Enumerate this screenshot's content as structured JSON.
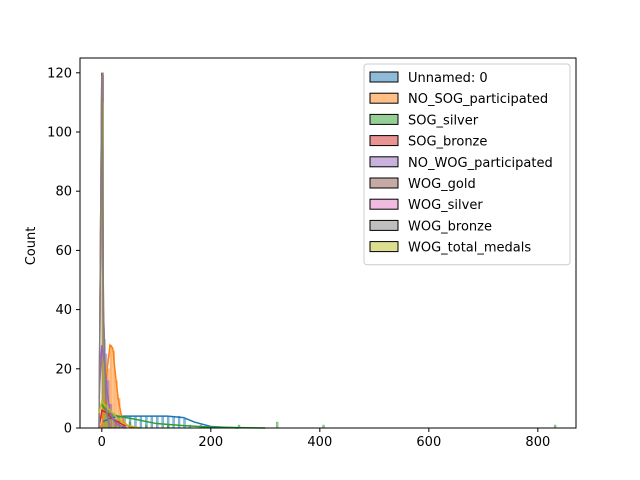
{
  "chart_data": {
    "type": "histogram",
    "title": "",
    "xlabel": "",
    "ylabel": "Count",
    "xlim": [
      -40,
      870
    ],
    "ylim": [
      0,
      125
    ],
    "xticks": [
      0,
      200,
      400,
      600,
      800
    ],
    "yticks": [
      0,
      20,
      40,
      60,
      80,
      100,
      120
    ],
    "legend_position": "top-right",
    "grid": false,
    "series": [
      {
        "name": "Unnamed: 0",
        "color": "#1f77b4",
        "bars": [
          [
            0,
            3
          ],
          [
            10,
            4
          ],
          [
            20,
            4
          ],
          [
            30,
            4
          ],
          [
            40,
            4
          ],
          [
            50,
            4
          ],
          [
            60,
            4
          ],
          [
            70,
            4
          ],
          [
            80,
            4
          ],
          [
            90,
            4
          ],
          [
            100,
            4
          ],
          [
            110,
            4
          ],
          [
            120,
            4
          ],
          [
            130,
            4
          ],
          [
            140,
            4
          ],
          [
            150,
            3
          ],
          [
            160,
            1
          ]
        ],
        "kde": [
          [
            0,
            2
          ],
          [
            20,
            3.6
          ],
          [
            40,
            4
          ],
          [
            80,
            4
          ],
          [
            120,
            4
          ],
          [
            150,
            3.5
          ],
          [
            170,
            2
          ],
          [
            200,
            0.5
          ],
          [
            250,
            0
          ]
        ]
      },
      {
        "name": "NO_SOG_participated",
        "color": "#ff7f0e",
        "bars": [
          [
            5,
            12
          ],
          [
            10,
            20
          ],
          [
            15,
            28
          ],
          [
            20,
            26
          ],
          [
            25,
            16
          ],
          [
            30,
            10
          ],
          [
            35,
            4
          ],
          [
            40,
            2
          ]
        ],
        "kde": [
          [
            -5,
            0
          ],
          [
            0,
            1
          ],
          [
            5,
            8
          ],
          [
            10,
            20
          ],
          [
            15,
            28
          ],
          [
            20,
            27
          ],
          [
            25,
            18
          ],
          [
            30,
            10
          ],
          [
            35,
            5
          ],
          [
            40,
            2
          ],
          [
            50,
            0.5
          ],
          [
            60,
            0
          ]
        ]
      },
      {
        "name": "SOG_silver",
        "color": "#2ca02c",
        "bars": [
          [
            0,
            67
          ],
          [
            5,
            10
          ],
          [
            10,
            6
          ],
          [
            20,
            4
          ],
          [
            30,
            3
          ],
          [
            50,
            2
          ],
          [
            80,
            1
          ],
          [
            120,
            1
          ],
          [
            180,
            1
          ],
          [
            250,
            1
          ],
          [
            320,
            2
          ],
          [
            405,
            1
          ],
          [
            830,
            1
          ]
        ],
        "kde": [
          [
            0,
            8
          ],
          [
            10,
            5
          ],
          [
            30,
            4
          ],
          [
            60,
            3
          ],
          [
            100,
            1.5
          ],
          [
            150,
            0.8
          ],
          [
            200,
            0.3
          ],
          [
            300,
            0
          ]
        ]
      },
      {
        "name": "SOG_bronze",
        "color": "#d62728",
        "bars": [
          [
            0,
            60
          ],
          [
            5,
            12
          ],
          [
            10,
            6
          ],
          [
            15,
            4
          ],
          [
            25,
            2
          ],
          [
            40,
            1
          ]
        ],
        "kde": [
          [
            -5,
            0
          ],
          [
            0,
            6
          ],
          [
            10,
            5
          ],
          [
            20,
            3
          ],
          [
            40,
            1
          ],
          [
            70,
            0
          ]
        ]
      },
      {
        "name": "NO_WOG_participated",
        "color": "#9467bd",
        "bars": [
          [
            0,
            35
          ],
          [
            3,
            30
          ],
          [
            6,
            25
          ],
          [
            10,
            16
          ],
          [
            15,
            8
          ],
          [
            20,
            5
          ],
          [
            25,
            3
          ],
          [
            30,
            2
          ]
        ],
        "kde": [
          [
            -5,
            10
          ],
          [
            0,
            28
          ],
          [
            5,
            22
          ],
          [
            10,
            12
          ],
          [
            15,
            6
          ],
          [
            20,
            3
          ],
          [
            30,
            1
          ],
          [
            45,
            0
          ]
        ]
      },
      {
        "name": "WOG_gold",
        "color": "#8c564b",
        "bars": [
          [
            0,
            120
          ],
          [
            3,
            18
          ],
          [
            6,
            6
          ],
          [
            10,
            2
          ]
        ],
        "kde": [
          [
            -5,
            0
          ],
          [
            0,
            120
          ],
          [
            3,
            40
          ],
          [
            8,
            6
          ],
          [
            15,
            0
          ]
        ]
      },
      {
        "name": "WOG_silver",
        "color": "#e377c2",
        "bars": [
          [
            0,
            118
          ],
          [
            3,
            20
          ],
          [
            6,
            5
          ],
          [
            10,
            2
          ]
        ],
        "kde": [
          [
            -5,
            0
          ],
          [
            0,
            118
          ],
          [
            3,
            38
          ],
          [
            8,
            6
          ],
          [
            15,
            0
          ]
        ]
      },
      {
        "name": "WOG_bronze",
        "color": "#7f7f7f",
        "bars": [
          [
            0,
            119
          ],
          [
            3,
            19
          ],
          [
            6,
            6
          ],
          [
            10,
            2
          ]
        ],
        "kde": [
          [
            -5,
            0
          ],
          [
            0,
            119
          ],
          [
            3,
            39
          ],
          [
            8,
            6
          ],
          [
            15,
            0
          ]
        ]
      },
      {
        "name": "WOG_total_medals",
        "color": "#bcbd22",
        "bars": [
          [
            0,
            110
          ],
          [
            4,
            22
          ],
          [
            8,
            10
          ],
          [
            14,
            6
          ],
          [
            20,
            4
          ],
          [
            28,
            2
          ],
          [
            36,
            1
          ]
        ],
        "kde": [
          [
            -5,
            5
          ],
          [
            0,
            9
          ],
          [
            10,
            7
          ],
          [
            20,
            5
          ],
          [
            30,
            3
          ],
          [
            45,
            1
          ],
          [
            70,
            0
          ]
        ]
      }
    ]
  }
}
